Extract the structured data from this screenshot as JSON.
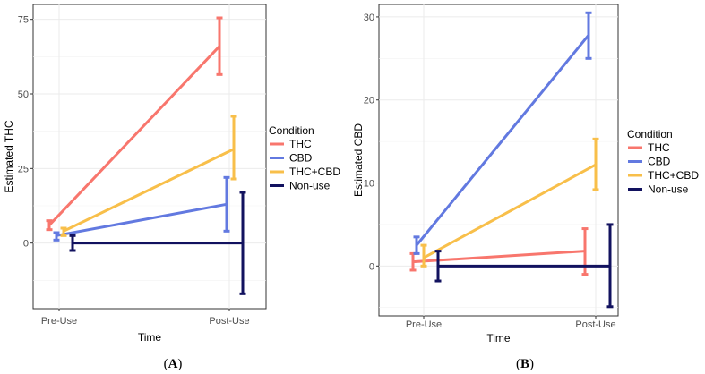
{
  "chart_data": [
    {
      "type": "line",
      "panel_label_open": "(",
      "panel_label": "A",
      "panel_label_close": ")",
      "title": "",
      "xlabel": "Time",
      "ylabel": "Estimated THC",
      "categories": [
        "Pre-Use",
        "Post-Use"
      ],
      "ylim": [
        -22,
        80
      ],
      "yticks": [
        0,
        25,
        50,
        75
      ],
      "tick_labels": [
        "0",
        "25",
        "50",
        "75"
      ],
      "grid": true,
      "legend_position": "right",
      "legend_title": "Condition",
      "series": [
        {
          "name": "THC",
          "color": "#f8766d",
          "values": [
            6,
            66
          ],
          "lower": [
            4.5,
            56.5
          ],
          "upper": [
            7.5,
            75.5
          ]
        },
        {
          "name": "CBD",
          "color": "#6279e0",
          "values": [
            2.5,
            13
          ],
          "lower": [
            1,
            4
          ],
          "upper": [
            3.5,
            22
          ]
        },
        {
          "name": "THC+CBD",
          "color": "#f8bf4a",
          "values": [
            4,
            31.5
          ],
          "lower": [
            2.5,
            21.5
          ],
          "upper": [
            5,
            42.5
          ]
        },
        {
          "name": "Non-use",
          "color": "#12125f",
          "values": [
            0,
            0
          ],
          "lower": [
            -2.5,
            -17
          ],
          "upper": [
            2.5,
            17
          ]
        }
      ]
    },
    {
      "type": "line",
      "panel_label_open": "(",
      "panel_label": "B",
      "panel_label_close": ")",
      "title": "",
      "xlabel": "Time",
      "ylabel": "Estimated CBD",
      "categories": [
        "Pre-Use",
        "Post-Use"
      ],
      "ylim": [
        -6,
        31.5
      ],
      "yticks": [
        0,
        10,
        20,
        30
      ],
      "tick_labels": [
        "0",
        "10",
        "20",
        "30"
      ],
      "grid": true,
      "legend_position": "right",
      "legend_title": "Condition",
      "series": [
        {
          "name": "THC",
          "color": "#f8766d",
          "values": [
            0.5,
            1.8
          ],
          "lower": [
            -0.5,
            -1
          ],
          "upper": [
            1.5,
            4.5
          ]
        },
        {
          "name": "CBD",
          "color": "#6279e0",
          "values": [
            2.5,
            27.8
          ],
          "lower": [
            1.5,
            25
          ],
          "upper": [
            3.5,
            30.5
          ]
        },
        {
          "name": "THC+CBD",
          "color": "#f8bf4a",
          "values": [
            1,
            12.2
          ],
          "lower": [
            0,
            9.2
          ],
          "upper": [
            2.5,
            15.3
          ]
        },
        {
          "name": "Non-use",
          "color": "#12125f",
          "values": [
            0,
            0
          ],
          "lower": [
            -1.8,
            -4.9
          ],
          "upper": [
            1.8,
            5
          ]
        }
      ]
    }
  ]
}
